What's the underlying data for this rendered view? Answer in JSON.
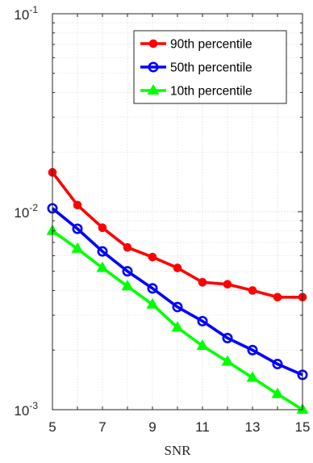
{
  "chart_data": {
    "type": "line",
    "title": "",
    "xlabel": "SNR",
    "ylabel": "",
    "yscale": "log",
    "xlim": [
      5,
      15
    ],
    "ylim": [
      0.001,
      0.1
    ],
    "grid": true,
    "legend_position": "top-right",
    "x": [
      5,
      6,
      7,
      8,
      9,
      10,
      11,
      12,
      13,
      14,
      15
    ],
    "x_ticks": [
      "5",
      "7",
      "9",
      "11",
      "13",
      "15"
    ],
    "y_ticks": [
      {
        "base": "10",
        "exp": "-1"
      },
      {
        "base": "10",
        "exp": "-2"
      },
      {
        "base": "10",
        "exp": "-3"
      }
    ],
    "series": [
      {
        "name": "90th percentile",
        "color": "#ff0000",
        "marker": "filled-circle",
        "values": [
          0.0158,
          0.0108,
          0.0083,
          0.0066,
          0.0059,
          0.0052,
          0.0044,
          0.0043,
          0.004,
          0.0037,
          0.0037
        ]
      },
      {
        "name": "50th percentile",
        "color": "#0000ff",
        "marker": "open-circle",
        "values": [
          0.0104,
          0.0082,
          0.0063,
          0.005,
          0.0041,
          0.0033,
          0.0028,
          0.0023,
          0.002,
          0.0017,
          0.0015
        ]
      },
      {
        "name": "10th percentile",
        "color": "#00ff00",
        "marker": "filled-triangle",
        "values": [
          0.008,
          0.0065,
          0.0052,
          0.0042,
          0.0034,
          0.0026,
          0.0021,
          0.00175,
          0.00145,
          0.0012,
          0.001
        ]
      }
    ]
  }
}
